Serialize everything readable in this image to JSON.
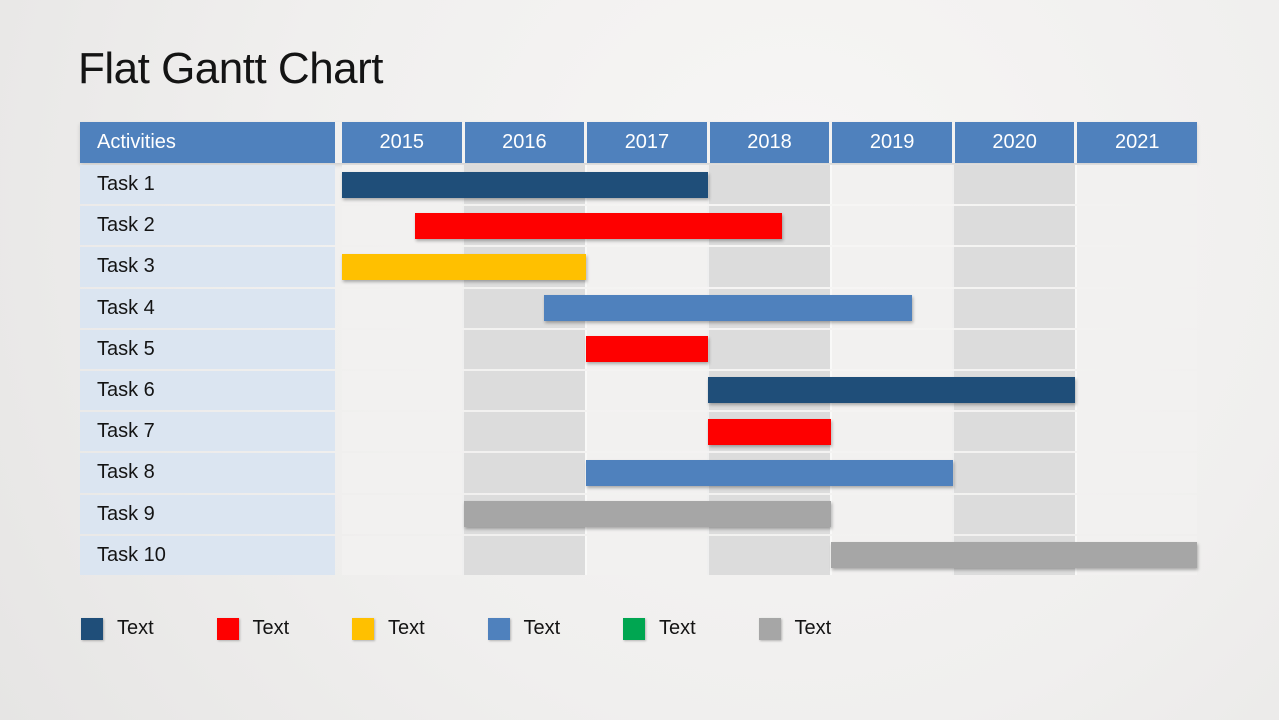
{
  "title": "Flat Gantt Chart",
  "table": {
    "activities_header": "Activities",
    "years": [
      "2015",
      "2016",
      "2017",
      "2018",
      "2019",
      "2020",
      "2021"
    ]
  },
  "colors": {
    "header_blue": "#4f81bd",
    "header_text": "#ffffff",
    "task_label_bg": "#dbe5f1",
    "column_light": "#f2f1f0",
    "column_shaded": "#dcdcdc",
    "navy": "#1f4e79",
    "red": "#fe0000",
    "yellow": "#ffc000",
    "blue": "#4f81bd",
    "green": "#00a651",
    "gray": "#a6a6a6"
  },
  "chart_data": {
    "type": "gantt",
    "title": "Flat Gantt Chart",
    "x_categories": [
      "2015",
      "2016",
      "2017",
      "2018",
      "2019",
      "2020",
      "2021"
    ],
    "x_range": [
      2015,
      2022
    ],
    "grid": "vertical-striped-columns",
    "legend_position": "bottom",
    "tasks": [
      {
        "name": "Task 1",
        "start": 2015.0,
        "end": 2018.0,
        "color": "navy"
      },
      {
        "name": "Task 2",
        "start": 2015.6,
        "end": 2018.6,
        "color": "red"
      },
      {
        "name": "Task 3",
        "start": 2015.0,
        "end": 2017.0,
        "color": "yellow"
      },
      {
        "name": "Task 4",
        "start": 2016.65,
        "end": 2019.67,
        "color": "blue"
      },
      {
        "name": "Task 5",
        "start": 2017.0,
        "end": 2018.0,
        "color": "red"
      },
      {
        "name": "Task 6",
        "start": 2018.0,
        "end": 2021.0,
        "color": "navy"
      },
      {
        "name": "Task 7",
        "start": 2018.0,
        "end": 2019.0,
        "color": "red"
      },
      {
        "name": "Task 8",
        "start": 2017.0,
        "end": 2020.0,
        "color": "blue"
      },
      {
        "name": "Task 9",
        "start": 2016.0,
        "end": 2019.0,
        "color": "gray"
      },
      {
        "name": "Task 10",
        "start": 2019.0,
        "end": 2022.0,
        "color": "gray"
      }
    ],
    "legend": [
      {
        "label": "Text",
        "color": "navy"
      },
      {
        "label": "Text",
        "color": "red"
      },
      {
        "label": "Text",
        "color": "yellow"
      },
      {
        "label": "Text",
        "color": "blue"
      },
      {
        "label": "Text",
        "color": "green"
      },
      {
        "label": "Text",
        "color": "gray"
      }
    ]
  }
}
